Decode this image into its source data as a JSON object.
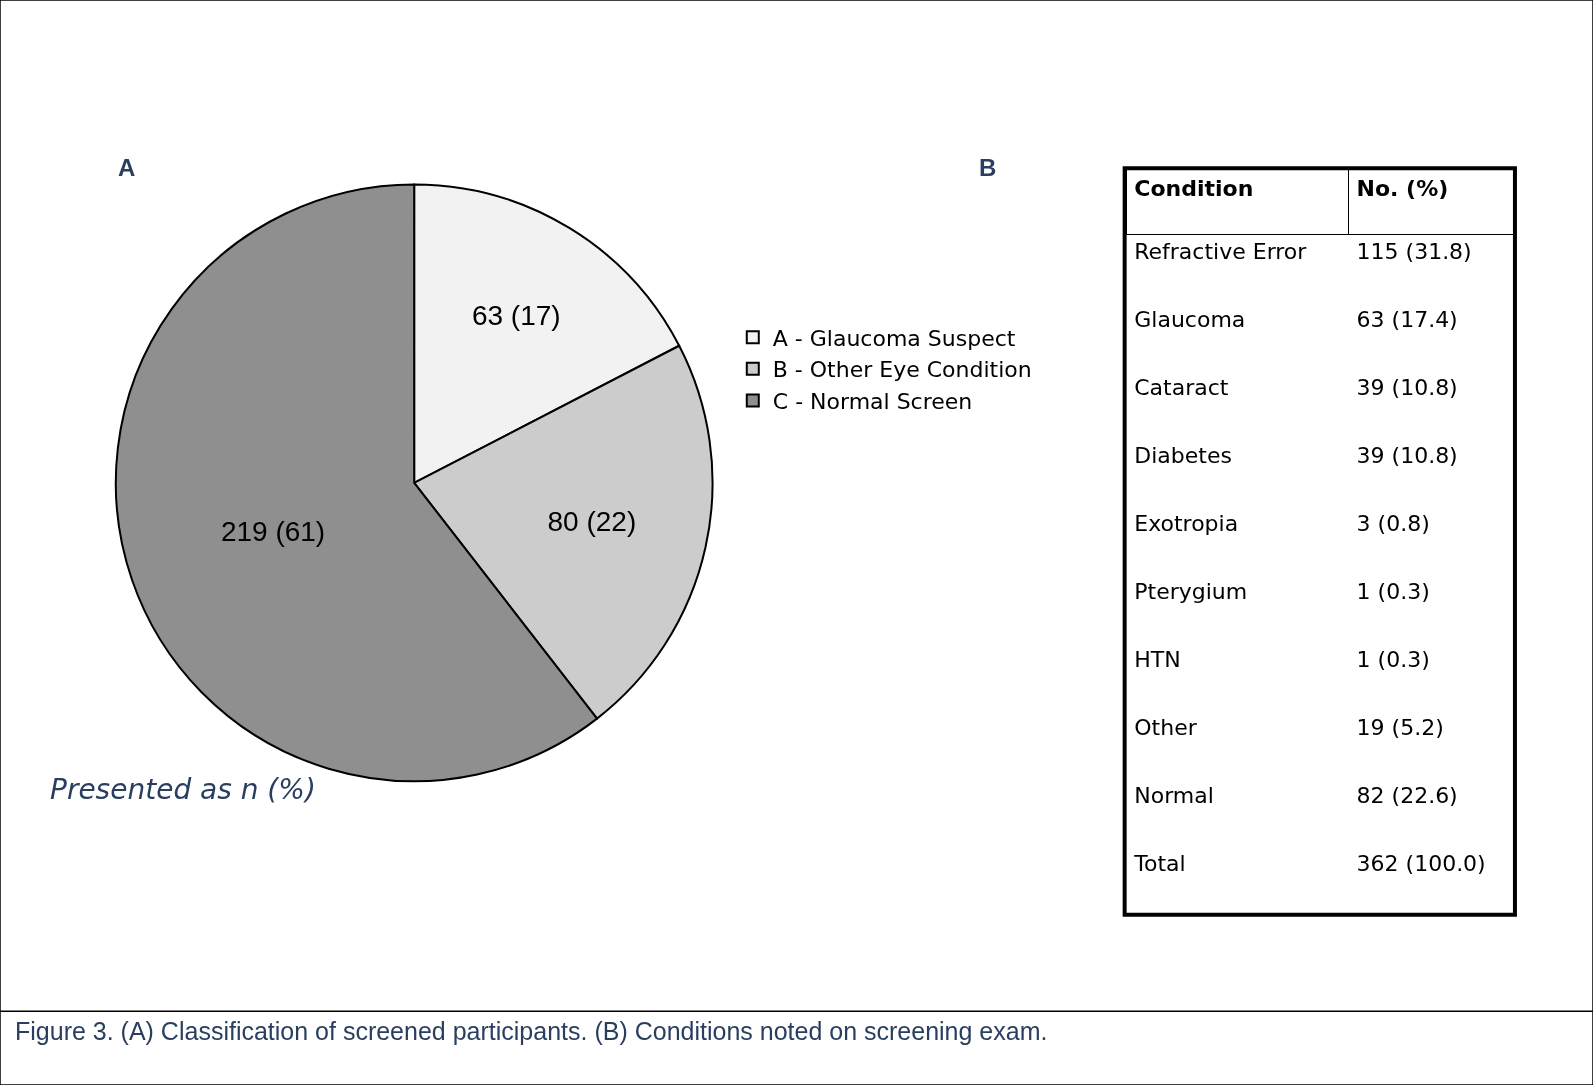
{
  "chart_data": [
    {
      "type": "pie",
      "title": "A",
      "categories": [
        "A - Glaucoma Suspect",
        "B - Other Eye Condition",
        "C - Normal Screen"
      ],
      "values": [
        63,
        80,
        219
      ],
      "value_labels": [
        "63 (17)",
        "80 (22)",
        "219 (61)"
      ],
      "colors": [
        "#f2f2f2",
        "#cccccc",
        "#8f8f8f"
      ],
      "legend": "right",
      "annotations": [
        "Presented as n (%)",
        "Figure 3. (A) Classification of screened participants. (B) Conditions noted on screening exam."
      ]
    },
    {
      "type": "other",
      "title": "B",
      "annotations": [
        "Condition",
        "No. (%)"
      ],
      "categories": [
        "Refractive Error",
        "Glaucoma",
        "Cataract",
        "Diabetes",
        "Exotropia",
        "Pterygium",
        "HTN",
        "Other",
        "Normal",
        "Total"
      ],
      "value_labels": [
        "115 (31.8)",
        "63 (17.4)",
        "39 (10.8)",
        "39 (10.8)",
        "3 (0.8)",
        "1 (0.3)",
        "1 (0.3)",
        "19 (5.2)",
        "82 (22.6)",
        "362 (100.0)"
      ]
    }
  ]
}
